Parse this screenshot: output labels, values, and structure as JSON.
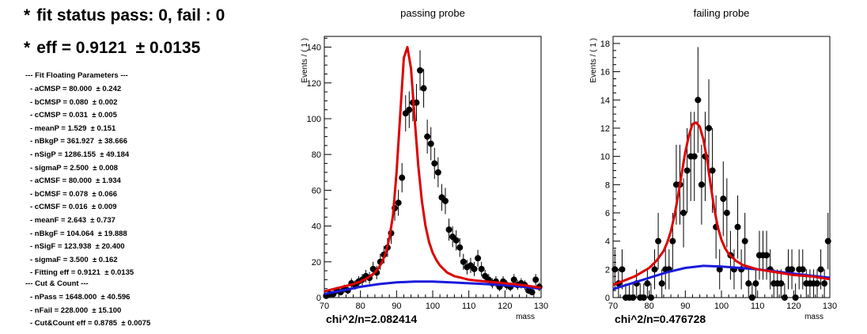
{
  "summary": {
    "fit_status": "fit status pass: 0, fail : 0",
    "eff": "eff = 0.9121  ± 0.0135"
  },
  "params": {
    "header": "--- Fit Floating Parameters ---",
    "lines": [
      "- aCMSP = 80.000  ± 0.242",
      "- bCMSP = 0.080  ± 0.002",
      "- cCMSP = 0.031  ± 0.005",
      "- meanP = 1.529  ± 0.151",
      "- nBkgP = 361.927  ± 38.666",
      "- nSigP = 1286.155  ± 49.184",
      "- sigmaP = 2.500  ± 0.008",
      "- aCMSF = 80.000  ± 1.934",
      "- bCMSF = 0.078  ± 0.066",
      "- cCMSF = 0.016  ± 0.009",
      "- meanF = 2.643  ± 0.737",
      "- nBkgF = 104.064  ± 19.888",
      "- nSigF = 123.938  ± 20.400",
      "- sigmaF = 3.500  ± 0.162",
      "- Fitting eff = 0.9121  ± 0.0135"
    ],
    "cut_header": "--- Cut & Count ---",
    "cut_lines": [
      "- nPass = 1648.000  ± 40.596",
      "- nFail = 228.000  ± 15.100",
      "- Cut&Count eff = 0.8785  ± 0.0075"
    ]
  },
  "chart_data": [
    {
      "type": "scatter",
      "title": "passing probe",
      "xlabel": "mass",
      "ylabel": "Events / ( 1 )",
      "xlim": [
        70,
        130
      ],
      "ylim": [
        0,
        146
      ],
      "xticks": [
        70,
        80,
        90,
        100,
        110,
        120,
        130
      ],
      "yticks": [
        0,
        20,
        40,
        60,
        80,
        100,
        120,
        140
      ],
      "chi2": "chi^2/n=2.082414",
      "colors": {
        "signal": "#dd0000",
        "background": "#1a1adb",
        "points": "#000000"
      },
      "points": {
        "x": [
          70.5,
          71.5,
          72.5,
          73.5,
          74.5,
          75.5,
          76.5,
          77.5,
          78.5,
          79.5,
          80.5,
          81.5,
          82.5,
          83.5,
          84.5,
          85.5,
          86.5,
          87.5,
          88.5,
          89.5,
          90.5,
          91.5,
          92.5,
          93.5,
          94.5,
          95.5,
          96.5,
          97.5,
          98.5,
          99.5,
          100.5,
          101.5,
          102.5,
          103.5,
          104.5,
          105.5,
          106.5,
          107.5,
          108.5,
          109.5,
          110.5,
          111.5,
          112.5,
          113.5,
          114.5,
          115.5,
          116.5,
          117.5,
          118.5,
          119.5,
          120.5,
          121.5,
          122.5,
          123.5,
          124.5,
          125.5,
          126.5,
          127.5,
          128.5,
          129.5
        ],
        "y": [
          1,
          2,
          2,
          4,
          3,
          5,
          4,
          8,
          7,
          9,
          10,
          12,
          11,
          16,
          14,
          20,
          24,
          28,
          36,
          50,
          53,
          67,
          103,
          105,
          109,
          109,
          127,
          117,
          90,
          86,
          75,
          70,
          56,
          54,
          38,
          34,
          32,
          28,
          20,
          17,
          18,
          16,
          22,
          16,
          12,
          10,
          8,
          9,
          6,
          9,
          7,
          6,
          10,
          7,
          8,
          7,
          4,
          3,
          10,
          6
        ]
      },
      "fit_total": {
        "x": [
          70,
          72,
          74,
          76,
          78,
          80,
          82,
          84,
          85,
          86,
          87,
          88,
          89,
          90,
          91,
          92,
          93,
          94,
          95,
          96,
          97,
          98,
          99,
          100,
          101,
          102,
          104,
          106,
          108,
          110,
          112,
          115,
          120,
          125,
          130
        ],
        "y": [
          3.5,
          4.5,
          5.5,
          6.5,
          7.5,
          9,
          11,
          14,
          16.5,
          20,
          25,
          33,
          46,
          70,
          102,
          134,
          140,
          128,
          100,
          74,
          54,
          40,
          31,
          25,
          21,
          18,
          14,
          12,
          11,
          10,
          9.5,
          9,
          8,
          7,
          5.5
        ]
      },
      "fit_background": {
        "x": [
          70,
          75,
          80,
          85,
          90,
          95,
          100,
          105,
          110,
          115,
          120,
          125,
          130
        ],
        "y": [
          2,
          4,
          6,
          7.5,
          8.5,
          9,
          9,
          8.5,
          8,
          7.5,
          7,
          6,
          5
        ]
      }
    },
    {
      "type": "scatter",
      "title": "failing probe",
      "xlabel": "mass",
      "ylabel": "Events / ( 1 )",
      "xlim": [
        70,
        130
      ],
      "ylim": [
        0,
        18.5
      ],
      "xticks": [
        70,
        80,
        90,
        100,
        110,
        120,
        130
      ],
      "yticks": [
        0,
        2,
        4,
        6,
        8,
        10,
        12,
        14,
        16,
        18
      ],
      "chi2": "chi^2/n=0.476728",
      "colors": {
        "signal": "#dd0000",
        "background": "#1a1adb",
        "points": "#000000"
      },
      "points": {
        "x": [
          70.5,
          71.5,
          72.5,
          73.5,
          74.5,
          75.5,
          76.5,
          77.5,
          78.5,
          79.5,
          80.5,
          81.5,
          82.5,
          83.5,
          84.5,
          85.5,
          86.5,
          87.5,
          88.5,
          89.5,
          90.5,
          91.5,
          92.5,
          93.5,
          94.5,
          95.5,
          96.5,
          97.5,
          98.5,
          99.5,
          100.5,
          101.5,
          102.5,
          103.5,
          104.5,
          105.5,
          106.5,
          107.5,
          108.5,
          109.5,
          110.5,
          111.5,
          112.5,
          113.5,
          114.5,
          115.5,
          116.5,
          117.5,
          118.5,
          119.5,
          120.5,
          121.5,
          122.5,
          123.5,
          124.5,
          125.5,
          126.5,
          127.5,
          128.5,
          129.5
        ],
        "y": [
          2,
          1,
          2,
          0,
          0,
          0,
          1,
          0,
          0,
          1,
          0,
          2,
          4,
          1,
          2,
          2,
          4,
          8,
          8,
          6,
          9,
          10,
          10,
          14,
          8,
          10,
          12,
          9,
          5,
          2,
          7,
          6,
          3,
          2,
          5,
          2,
          4,
          1,
          0,
          1,
          3,
          3,
          3,
          2,
          1,
          1,
          1,
          0,
          2,
          2,
          0,
          2,
          2,
          1,
          1,
          1,
          1,
          2,
          1,
          4
        ]
      },
      "fit_total": {
        "x": [
          70,
          72,
          74,
          76,
          78,
          80,
          82,
          84,
          85,
          86,
          87,
          88,
          89,
          90,
          91,
          92,
          93,
          94,
          95,
          96,
          97,
          98,
          99,
          100,
          101,
          102,
          104,
          106,
          110,
          115,
          120,
          125,
          130
        ],
        "y": [
          0.9,
          1.1,
          1.3,
          1.5,
          1.8,
          2.1,
          2.6,
          3.3,
          3.9,
          4.7,
          5.8,
          7.2,
          8.8,
          10.3,
          11.5,
          12.3,
          12.4,
          12.1,
          11.2,
          9.8,
          8.0,
          6.3,
          5.0,
          4.1,
          3.5,
          3.1,
          2.6,
          2.3,
          2.0,
          1.8,
          1.6,
          1.5,
          1.3
        ]
      },
      "fit_background": {
        "x": [
          70,
          75,
          80,
          85,
          90,
          95,
          100,
          105,
          110,
          115,
          120,
          125,
          130
        ],
        "y": [
          0.6,
          1.0,
          1.4,
          1.8,
          2.1,
          2.25,
          2.2,
          2.1,
          2.0,
          1.85,
          1.7,
          1.55,
          1.4
        ]
      }
    }
  ]
}
